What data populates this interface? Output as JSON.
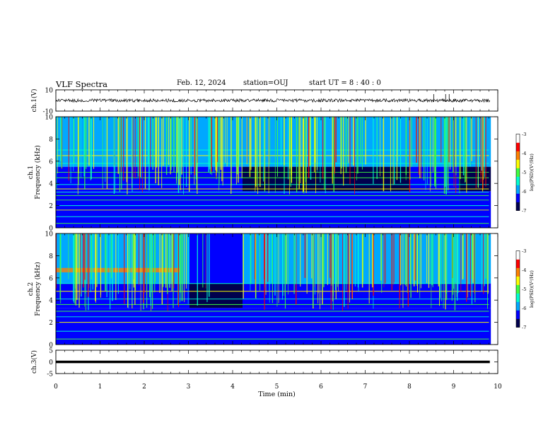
{
  "header": {
    "title": "VLF Spectra",
    "date": "Feb. 12, 2024",
    "station": "station=OUJ",
    "start": "start  UT =  8 : 40 : 0"
  },
  "colors": {
    "scale": [
      "#00004d",
      "#0000ff",
      "#00a8ff",
      "#00ffd0",
      "#40ff40",
      "#ffff00",
      "#ff8000",
      "#ff0000",
      "#ffffff"
    ],
    "waveform": "#000000"
  },
  "chart_data": [
    {
      "id": "ch1_waveform",
      "type": "line",
      "ylabel": "ch.1(V)",
      "ylim": [
        -10,
        10
      ],
      "yticks": [
        "10",
        "-10"
      ],
      "xlim": [
        0,
        10
      ],
      "baseline": 0,
      "spikes_at_min": [
        8.55,
        8.82,
        8.9
      ]
    },
    {
      "id": "ch1_spectrogram",
      "type": "heatmap",
      "panel_label": "ch.1",
      "ylabel": "Frequency (kHz)",
      "ylim": [
        0,
        10
      ],
      "yticks": [
        "0",
        "2",
        "4",
        "6",
        "8",
        "10"
      ],
      "xlim": [
        0,
        10
      ],
      "data_end_min": 9.8,
      "colorbar": {
        "label": "log(PSD)(V²/Hz)",
        "range": [
          -7,
          -3
        ],
        "ticks": [
          "-3",
          "-4",
          "-5",
          "-6",
          "-7"
        ]
      },
      "quiet_intervals_min": [
        [
          4.2,
          8.0
        ],
        [
          9.1,
          9.8
        ]
      ],
      "lines_khz": [
        0.4,
        1.0,
        1.6,
        2.0,
        2.5,
        2.9,
        3.2,
        3.5,
        3.9,
        4.5,
        5.0,
        5.8,
        6.5,
        7.0
      ]
    },
    {
      "id": "ch2_spectrogram",
      "type": "heatmap",
      "panel_label": "ch.2",
      "ylabel": "Frequency (kHz)",
      "ylim": [
        0,
        10
      ],
      "yticks": [
        "0",
        "2",
        "4",
        "6",
        "8",
        "10"
      ],
      "xlim": [
        0,
        10
      ],
      "data_end_min": 9.8,
      "colorbar": {
        "label": "log(PSD)(V²/Hz)",
        "range": [
          -7,
          -3
        ],
        "ticks": [
          "-3",
          "-4",
          "-5",
          "-6",
          "-7"
        ]
      },
      "gap_intervals_min": [
        [
          3.0,
          4.2
        ]
      ],
      "emission_band_khz": [
        6.5,
        6.9
      ],
      "emission_band_min": [
        0,
        2.8
      ],
      "lines_khz": [
        0.5,
        1.2,
        2.0,
        2.5,
        3.0,
        3.6,
        4.1,
        4.8,
        5.5
      ]
    },
    {
      "id": "ch3_waveform",
      "type": "line",
      "ylabel": "ch.3(V)",
      "ylim": [
        -5,
        5
      ],
      "yticks": [
        "5",
        "0",
        "-5"
      ],
      "xlim": [
        0,
        10
      ],
      "baseline": 0,
      "xlabel": "Time (min)",
      "xticks": [
        "0",
        "1",
        "2",
        "3",
        "4",
        "5",
        "6",
        "7",
        "8",
        "9",
        "10"
      ]
    }
  ]
}
